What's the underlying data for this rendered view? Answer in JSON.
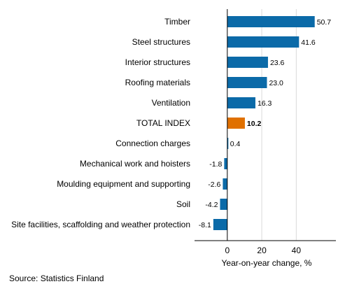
{
  "chart_data": {
    "type": "bar",
    "orientation": "horizontal",
    "categories": [
      "Timber",
      "Steel structures",
      "Interior structures",
      "Roofing materials",
      "Ventilation",
      "TOTAL INDEX",
      "Connection charges",
      "Mechanical work and hoisters",
      "Moulding equipment and supporting",
      "Soil",
      "Site facilities, scaffolding and weather protection"
    ],
    "values": [
      50.7,
      41.6,
      23.6,
      23.0,
      16.3,
      10.2,
      0.4,
      -1.8,
      -2.6,
      -4.2,
      -8.1
    ],
    "value_labels": [
      "50.7",
      "41.6",
      "23.6",
      "23.0",
      "16.3",
      "10.2",
      "0.4",
      "-1.8",
      "-2.6",
      "-4.2",
      "-8.1"
    ],
    "highlight_category": "TOTAL INDEX",
    "xlabel": "Year-on-year change, %",
    "x_ticks": [
      0,
      20,
      40
    ],
    "x_tick_labels": [
      "0",
      "20",
      "40"
    ],
    "xlim": [
      -19,
      63
    ],
    "grid": "vertical",
    "colors": {
      "bar": "#0b6aa8",
      "highlight": "#e07000",
      "grid": "#d9d9d9",
      "axis": "#000000"
    }
  },
  "source": "Source: Statistics Finland"
}
